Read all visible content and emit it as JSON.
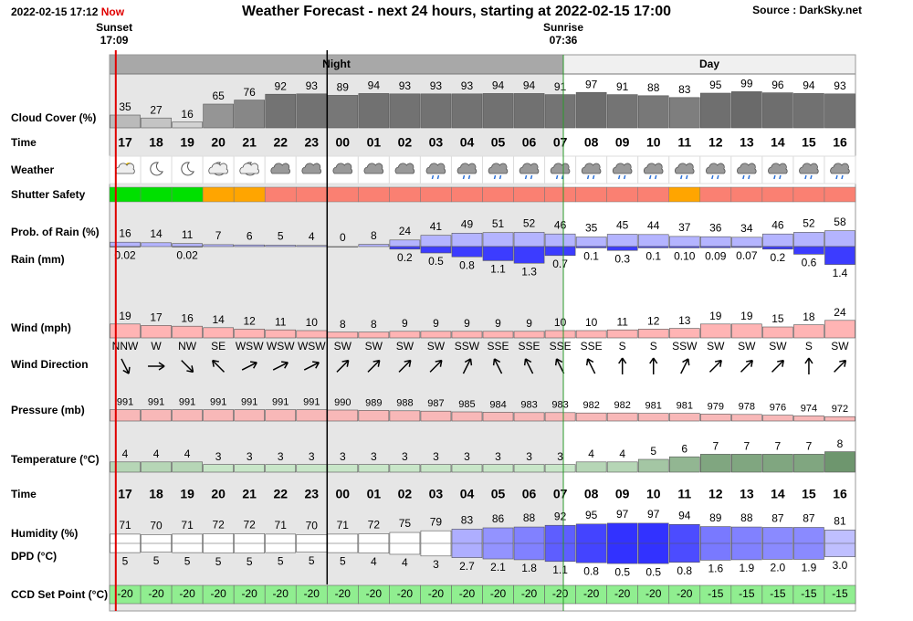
{
  "header": {
    "timestamp": "2022-02-15 17:12",
    "now": "Now",
    "title": "Weather Forecast - next 24 hours, starting at 2022-02-15 17:00",
    "source": "Source : DarkSky.net"
  },
  "sun": {
    "sunset_label": "Sunset",
    "sunset_time": "17:09",
    "sunrise_label": "Sunrise",
    "sunrise_time": "07:36"
  },
  "bands": {
    "night": "Night",
    "day": "Day"
  },
  "times": [
    "17",
    "18",
    "19",
    "20",
    "21",
    "22",
    "23",
    "00",
    "01",
    "02",
    "03",
    "04",
    "05",
    "06",
    "07",
    "08",
    "09",
    "10",
    "11",
    "12",
    "13",
    "14",
    "15",
    "16"
  ],
  "rows": {
    "cloud_cover": {
      "label": "Cloud Cover (%)",
      "values": [
        35,
        27,
        16,
        65,
        76,
        92,
        93,
        89,
        94,
        93,
        93,
        93,
        94,
        94,
        91,
        97,
        91,
        88,
        83,
        95,
        99,
        96,
        94,
        93
      ]
    },
    "time": {
      "label": "Time"
    },
    "weather": {
      "label": "Weather"
    },
    "shutter_safety": {
      "label": "Shutter Safety",
      "colors": [
        "#00e000",
        "#00e000",
        "#00e000",
        "#ffa500",
        "#ffa500",
        "#fa8072",
        "#fa8072",
        "#fa8072",
        "#fa8072",
        "#fa8072",
        "#fa8072",
        "#fa8072",
        "#fa8072",
        "#fa8072",
        "#fa8072",
        "#fa8072",
        "#fa8072",
        "#fa8072",
        "#ffa500",
        "#fa8072",
        "#fa8072",
        "#fa8072",
        "#fa8072",
        "#fa8072"
      ]
    },
    "rain_probability": {
      "label": "Prob. of Rain (%)",
      "color": "#b4b4ff",
      "values": [
        16,
        14,
        11,
        7,
        6,
        5,
        4,
        0,
        8,
        24,
        41,
        49,
        51,
        52,
        46,
        35,
        45,
        44,
        37,
        36,
        34,
        46,
        52,
        58
      ]
    },
    "rain": {
      "label": "Rain (mm)",
      "color": "#3c3cff",
      "values": [
        0.02,
        null,
        0.02,
        null,
        null,
        null,
        null,
        null,
        null,
        0.2,
        0.5,
        0.8,
        1.1,
        1.3,
        0.7,
        0.1,
        0.3,
        0.1,
        0.1,
        0.09,
        0.07,
        0.2,
        0.6,
        1.4
      ],
      "value_labels": [
        "0.02",
        null,
        "0.02",
        null,
        null,
        null,
        null,
        null,
        null,
        "0.2",
        "0.5",
        "0.8",
        "1.1",
        "1.3",
        "0.7",
        "0.1",
        "0.3",
        "0.1",
        "0.10",
        "0.09",
        "0.07",
        "0.2",
        "0.6",
        "1.4"
      ]
    },
    "wind": {
      "label": "Wind (mph)",
      "color": "#ffb4b4",
      "values": [
        19,
        17,
        16,
        14,
        12,
        11,
        10,
        8,
        8,
        9,
        9,
        9,
        9,
        9,
        10,
        10,
        11,
        12,
        13,
        19,
        19,
        15,
        18,
        24
      ]
    },
    "wind_direction": {
      "label": "Wind Direction",
      "values": [
        "NNW",
        "W",
        "NW",
        "SE",
        "WSW",
        "WSW",
        "WSW",
        "SW",
        "SW",
        "SW",
        "SW",
        "SSW",
        "SSE",
        "SSE",
        "SSE",
        "SSE",
        "S",
        "S",
        "SSW",
        "SW",
        "SW",
        "SW",
        "S",
        "SW"
      ]
    },
    "pressure": {
      "label": "Pressure (mb)",
      "color": "#f8b8b8",
      "values": [
        991,
        991,
        991,
        991,
        991,
        991,
        991,
        990,
        989,
        988,
        987,
        985,
        984,
        983,
        983,
        982,
        982,
        981,
        981,
        979,
        978,
        976,
        974,
        972
      ]
    },
    "temperature": {
      "label": "Temperature (°C)",
      "values": [
        4,
        4,
        4,
        3,
        3,
        3,
        3,
        3,
        3,
        3,
        3,
        3,
        3,
        3,
        3,
        4,
        4,
        5,
        6,
        7,
        7,
        7,
        7,
        8
      ]
    },
    "humidity": {
      "label": "Humidity (%)",
      "values": [
        71,
        70,
        71,
        72,
        72,
        71,
        70,
        71,
        72,
        75,
        79,
        83,
        86,
        88,
        92,
        95,
        97,
        97,
        94,
        89,
        88,
        87,
        87,
        81
      ]
    },
    "dpd": {
      "label": "DPD (°C)",
      "values": [
        5,
        5,
        5,
        5,
        5,
        5,
        5,
        5,
        4,
        4,
        3,
        2.7,
        2.1,
        1.8,
        1.1,
        0.8,
        0.5,
        0.5,
        0.8,
        1.6,
        1.9,
        2.0,
        1.9,
        3.0
      ],
      "value_labels": [
        "5",
        "5",
        "5",
        "5",
        "5",
        "5",
        "5",
        "5",
        "4",
        "4",
        "3",
        "2.7",
        "2.1",
        "1.8",
        "1.1",
        "0.8",
        "0.5",
        "0.5",
        "0.8",
        "1.6",
        "1.9",
        "2.0",
        "1.9",
        "3.0"
      ]
    },
    "ccd_set_point": {
      "label": "CCD Set Point (°C)",
      "color": "#90ee90",
      "values": [
        -20,
        -20,
        -20,
        -20,
        -20,
        -20,
        -20,
        -20,
        -20,
        -20,
        -20,
        -20,
        -20,
        -20,
        -20,
        -20,
        -20,
        -20,
        -20,
        -15,
        -15,
        -15,
        -15,
        -15
      ]
    }
  }
}
